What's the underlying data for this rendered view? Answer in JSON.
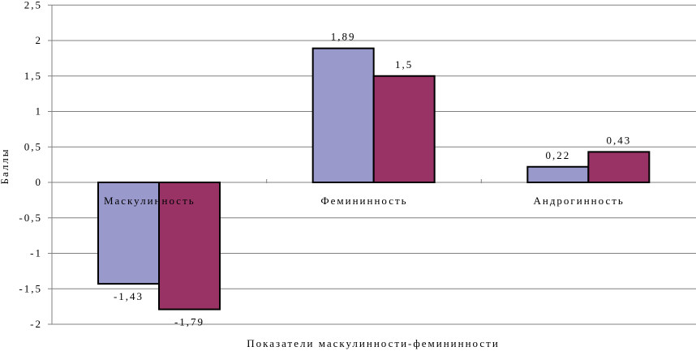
{
  "chart_data": {
    "type": "bar",
    "title": "",
    "xlabel": "Показатели маскулинности-фемининности",
    "ylabel": "Баллы",
    "ylim": [
      -2,
      2.5
    ],
    "yticks": [
      "-2",
      "-1,5",
      "-1",
      "-0,5",
      "0",
      "0,5",
      "1",
      "1,5",
      "2",
      "2,5"
    ],
    "ytick_values": [
      -2,
      -1.5,
      -1,
      -0.5,
      0,
      0.5,
      1,
      1.5,
      2,
      2.5
    ],
    "grid": true,
    "categories": [
      "Маскулинность",
      "Фемининность",
      "Андрогинность"
    ],
    "series": [
      {
        "values": [
          -1.43,
          1.89,
          0.22
        ],
        "labels": [
          "-1,43",
          "1,89",
          "0,22"
        ],
        "color": "#9999CC"
      },
      {
        "values": [
          -1.79,
          1.5,
          0.43
        ],
        "labels": [
          "-1,79",
          "1,5",
          "0,43"
        ],
        "color": "#993366"
      }
    ]
  }
}
